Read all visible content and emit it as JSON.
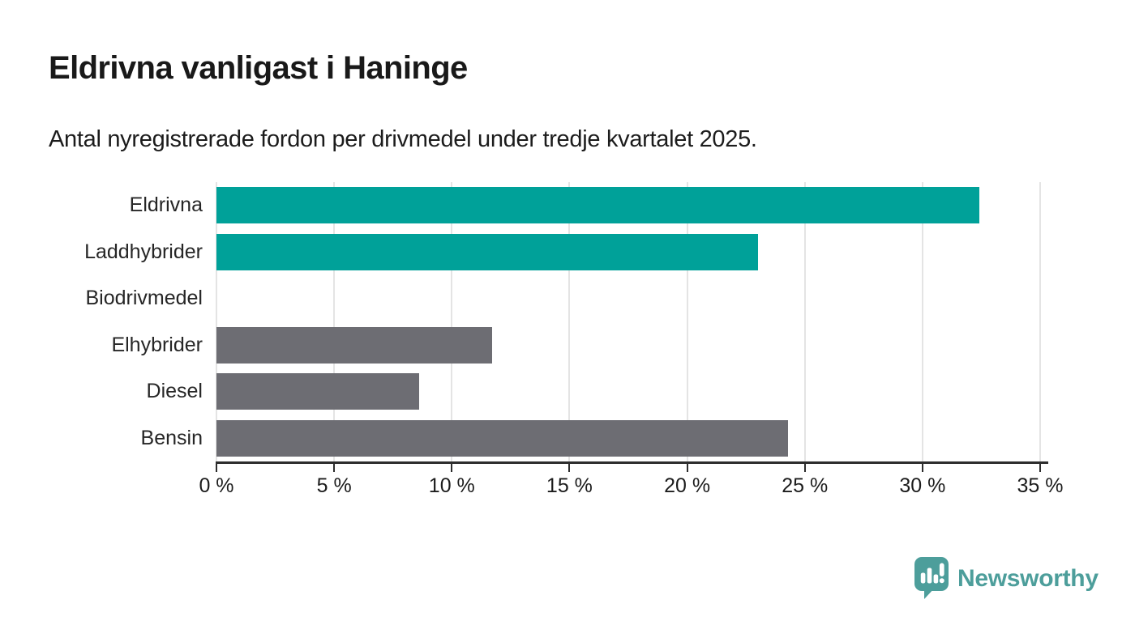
{
  "header": {
    "title": "Eldrivna vanligast i Haninge",
    "subtitle": "Antal nyregistrerade fordon per drivmedel under tredje kvartalet 2025."
  },
  "chart_data": {
    "type": "bar",
    "orientation": "horizontal",
    "title": "Eldrivna vanligast i Haninge",
    "subtitle": "Antal nyregistrerade fordon per drivmedel under tredje kvartalet 2025.",
    "categories": [
      "Eldrivna",
      "Laddhybrider",
      "Biodrivmedel",
      "Elhybrider",
      "Diesel",
      "Bensin"
    ],
    "values": [
      32.4,
      23.0,
      0,
      11.7,
      8.6,
      24.3
    ],
    "unit": "%",
    "bar_colors": [
      "#00a199",
      "#00a199",
      "#6d6d73",
      "#6d6d73",
      "#6d6d73",
      "#6d6d73"
    ],
    "xlim": [
      0,
      35
    ],
    "x_ticks": [
      0,
      5,
      10,
      15,
      20,
      25,
      30,
      35
    ],
    "x_tick_labels": [
      "0 %",
      "5 %",
      "10 %",
      "15 %",
      "20 %",
      "25 %",
      "30 %",
      "35 %"
    ],
    "xlabel": "",
    "ylabel": "",
    "grid": "vertical",
    "legend": "none"
  },
  "branding": {
    "logo_text": "Newsworthy",
    "logo_color": "#4d9e9b"
  },
  "colors": {
    "accent_teal": "#00a199",
    "neutral_gray": "#6d6d73",
    "gridline": "#e4e4e4",
    "axis": "#2d2d2d"
  }
}
